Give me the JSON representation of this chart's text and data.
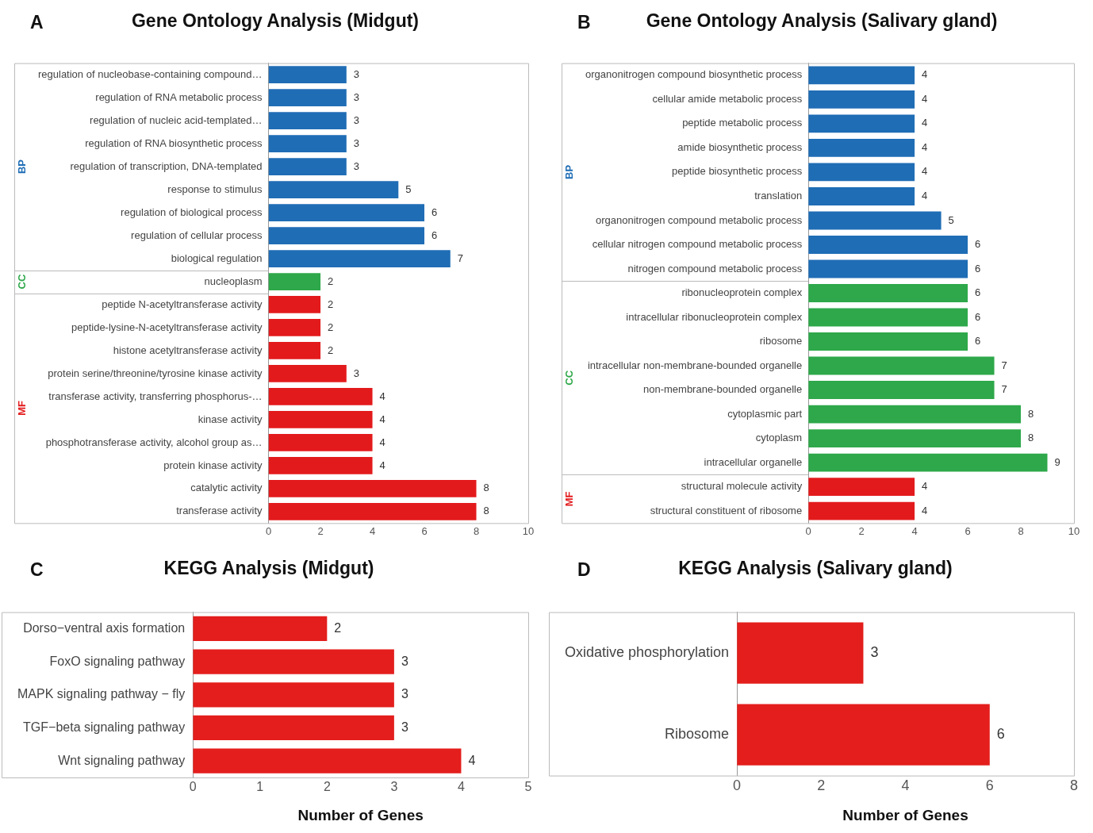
{
  "chart_data": [
    {
      "type": "bar",
      "orientation": "horizontal",
      "title": "Gene Ontology Analysis (Midgut)",
      "annotations": [
        "A"
      ],
      "categories": [
        "regulation of nucleobase-containing compound…",
        "regulation of RNA metabolic process",
        "regulation of nucleic acid-templated…",
        "regulation of RNA biosynthetic process",
        "regulation of transcription, DNA-templated",
        "response to stimulus",
        "regulation of biological process",
        "regulation of cellular process",
        "biological regulation",
        "nucleoplasm",
        "peptide N-acetyltransferase activity",
        "peptide-lysine-N-acetyltransferase activity",
        "histone acetyltransferase activity",
        "protein serine/threonine/tyrosine kinase activity",
        "transferase activity, transferring phosphorus-…",
        "kinase activity",
        "phosphotransferase activity, alcohol group as…",
        "protein kinase activity",
        "catalytic activity",
        "transferase activity"
      ],
      "series": [
        {
          "name": "BP",
          "color": "#1f6db5",
          "values": [
            3,
            3,
            3,
            3,
            3,
            5,
            6,
            6,
            7,
            null,
            null,
            null,
            null,
            null,
            null,
            null,
            null,
            null,
            null,
            null
          ]
        },
        {
          "name": "CC",
          "color": "#2ea84a",
          "values": [
            null,
            null,
            null,
            null,
            null,
            null,
            null,
            null,
            null,
            2,
            null,
            null,
            null,
            null,
            null,
            null,
            null,
            null,
            null,
            null
          ]
        },
        {
          "name": "MF",
          "color": "#e31a1c",
          "values": [
            null,
            null,
            null,
            null,
            null,
            null,
            null,
            null,
            null,
            null,
            2,
            2,
            2,
            3,
            4,
            4,
            4,
            4,
            8,
            8
          ]
        }
      ],
      "xlim": [
        0,
        10
      ],
      "xticks": [
        0,
        2,
        4,
        6,
        8,
        10
      ],
      "data_labels": true,
      "legend": false
    },
    {
      "type": "bar",
      "orientation": "horizontal",
      "title": "Gene Ontology Analysis (Salivary gland)",
      "annotations": [
        "B"
      ],
      "categories": [
        "organonitrogen compound biosynthetic process",
        "cellular amide metabolic process",
        "peptide metabolic process",
        "amide biosynthetic process",
        "peptide biosynthetic process",
        "translation",
        "organonitrogen compound metabolic process",
        "cellular nitrogen compound metabolic process",
        "nitrogen compound metabolic process",
        "ribonucleoprotein complex",
        "intracellular ribonucleoprotein complex",
        "ribosome",
        "intracellular non-membrane-bounded organelle",
        "non-membrane-bounded organelle",
        "cytoplasmic part",
        "cytoplasm",
        "intracellular organelle",
        "structural molecule activity",
        "structural constituent of ribosome"
      ],
      "series": [
        {
          "name": "BP",
          "color": "#1f6db5",
          "values": [
            4,
            4,
            4,
            4,
            4,
            4,
            5,
            6,
            6,
            null,
            null,
            null,
            null,
            null,
            null,
            null,
            null,
            null,
            null
          ]
        },
        {
          "name": "CC",
          "color": "#2ea84a",
          "values": [
            null,
            null,
            null,
            null,
            null,
            null,
            null,
            null,
            null,
            6,
            6,
            6,
            7,
            7,
            8,
            8,
            9,
            null,
            null
          ]
        },
        {
          "name": "MF",
          "color": "#e31a1c",
          "values": [
            null,
            null,
            null,
            null,
            null,
            null,
            null,
            null,
            null,
            null,
            null,
            null,
            null,
            null,
            null,
            null,
            null,
            4,
            4
          ]
        }
      ],
      "xlim": [
        0,
        10
      ],
      "xticks": [
        0,
        2,
        4,
        6,
        8,
        10
      ],
      "data_labels": true,
      "legend": false
    },
    {
      "type": "bar",
      "orientation": "horizontal",
      "title": "KEGG Analysis (Midgut)",
      "xlabel": "Number of Genes",
      "annotations": [
        "C"
      ],
      "categories": [
        "Dorso−ventral axis formation",
        "FoxO signaling pathway",
        "MAPK signaling pathway − fly",
        "TGF−beta signaling pathway",
        "Wnt signaling pathway"
      ],
      "values": [
        2,
        3,
        3,
        3,
        4
      ],
      "color": "#e31e1c",
      "xlim": [
        0,
        5
      ],
      "xticks": [
        0,
        1,
        2,
        3,
        4,
        5
      ],
      "data_labels": true,
      "legend": false
    },
    {
      "type": "bar",
      "orientation": "horizontal",
      "title": "KEGG Analysis (Salivary gland)",
      "xlabel": "Number of Genes",
      "annotations": [
        "D"
      ],
      "categories": [
        "Oxidative phosphorylation",
        "Ribosome"
      ],
      "values": [
        3,
        6
      ],
      "color": "#e31e1c",
      "xlim": [
        0,
        8
      ],
      "xticks": [
        0,
        2,
        4,
        6,
        8
      ],
      "data_labels": true,
      "legend": false
    }
  ]
}
